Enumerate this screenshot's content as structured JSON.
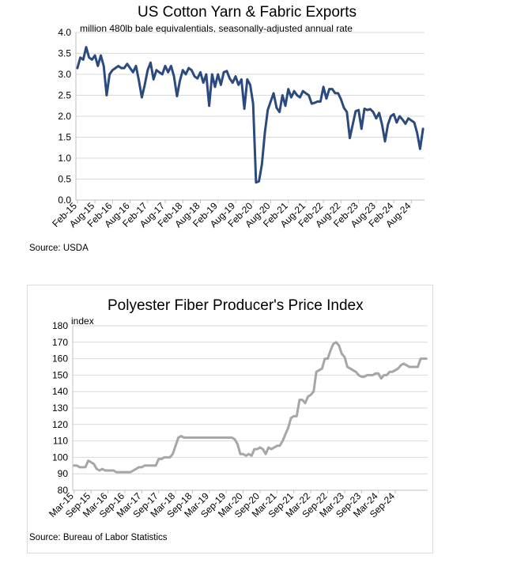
{
  "chart_data": [
    {
      "type": "line",
      "title": "US Cotton Yarn & Fabric Exports",
      "ylabel": "million 480lb bale equivalentials, seasonally-adjusted annual rate",
      "xlabel": "",
      "source": "Source: USDA",
      "ylim": [
        0,
        4.0
      ],
      "y_ticks": [
        "0.0",
        "0.5",
        "1.0",
        "1.5",
        "2.0",
        "2.5",
        "3.0",
        "3.5",
        "4.0"
      ],
      "x_tick_labels": [
        "Feb-15",
        "Aug-15",
        "Feb-16",
        "Aug-16",
        "Feb-17",
        "Aug-17",
        "Feb-18",
        "Aug-18",
        "Feb-19",
        "Aug-19",
        "Feb-20",
        "Aug-20",
        "Feb-21",
        "Aug-21",
        "Feb-22",
        "Aug-22",
        "Feb-23",
        "Aug-23",
        "Feb-24",
        "Aug-24"
      ],
      "color": "#2b4a7e",
      "series": [
        {
          "name": "US Cotton Yarn & Fabric Exports",
          "values": [
            3.15,
            3.4,
            3.35,
            3.65,
            3.4,
            3.35,
            3.45,
            3.2,
            3.45,
            3.2,
            2.5,
            3.0,
            3.1,
            3.15,
            3.2,
            3.15,
            3.15,
            3.25,
            3.15,
            3.05,
            3.2,
            2.85,
            2.45,
            2.75,
            3.1,
            3.28,
            2.88,
            3.1,
            3.05,
            3.0,
            3.2,
            3.05,
            3.2,
            2.95,
            2.48,
            2.85,
            3.1,
            3.0,
            3.15,
            3.1,
            2.95,
            2.9,
            3.05,
            2.8,
            3.0,
            2.25,
            3.0,
            2.7,
            3.0,
            2.75,
            3.05,
            3.08,
            2.9,
            2.8,
            2.95,
            2.75,
            2.88,
            2.18,
            2.88,
            2.75,
            2.3,
            0.42,
            0.45,
            0.85,
            1.6,
            2.15,
            2.35,
            2.55,
            2.2,
            2.1,
            2.5,
            2.25,
            2.65,
            2.45,
            2.6,
            2.5,
            2.45,
            2.6,
            2.55,
            2.5,
            2.3,
            2.32,
            2.35,
            2.35,
            2.7,
            2.42,
            2.65,
            2.65,
            2.55,
            2.55,
            2.4,
            2.2,
            2.1,
            1.48,
            1.8,
            2.12,
            2.15,
            1.7,
            2.18,
            2.15,
            2.17,
            2.1,
            1.95,
            2.08,
            1.8,
            1.4,
            1.8,
            2.0,
            2.05,
            1.85,
            2.0,
            1.92,
            1.82,
            1.95,
            1.9,
            1.85,
            1.6,
            1.22,
            1.7
          ]
        }
      ]
    },
    {
      "type": "line",
      "title": "Polyester Fiber Producer's Price Index",
      "ylabel": "index",
      "xlabel": "",
      "source": "Source: Bureau of Labor Statistics",
      "ylim": [
        80,
        180
      ],
      "y_ticks": [
        "80",
        "90",
        "100",
        "110",
        "120",
        "130",
        "140",
        "150",
        "160",
        "170",
        "180"
      ],
      "x_tick_labels": [
        "Mar-15",
        "Sep-15",
        "Mar-16",
        "Sep-16",
        "Mar-17",
        "Sep-17",
        "Mar-18",
        "Sep-18",
        "Mar-19",
        "Sep-19",
        "Mar-20",
        "Sep-20",
        "Mar-21",
        "Sep-21",
        "Mar-22",
        "Sep-22",
        "Mar-23",
        "Sep-23",
        "Mar-24",
        "Sep-24"
      ],
      "color": "#a6a6a6",
      "series": [
        {
          "name": "Polyester Fiber Producer's Price Index",
          "values": [
            95,
            95,
            94,
            94,
            94,
            98,
            97,
            96,
            93,
            92,
            93,
            92,
            92,
            92,
            92,
            91,
            91,
            91,
            91,
            91,
            91,
            92,
            93,
            94,
            94,
            95,
            95,
            95,
            95,
            95,
            99,
            99,
            100,
            100,
            100,
            102,
            107,
            112,
            113,
            112,
            112,
            112,
            112,
            112,
            112,
            112,
            112,
            112,
            112,
            112,
            112,
            112,
            112,
            112,
            112,
            112,
            112,
            111,
            108,
            102,
            102,
            101,
            102,
            101,
            105,
            105,
            106,
            105,
            102,
            106,
            105,
            106,
            107,
            107,
            110,
            114,
            118,
            124,
            125,
            125,
            135,
            135,
            133,
            137,
            138,
            140,
            152,
            153,
            154,
            160,
            160,
            165,
            169,
            170,
            168,
            163,
            161,
            155,
            154,
            153,
            152,
            150,
            149,
            149,
            150,
            150,
            150,
            151,
            151,
            148,
            150,
            150,
            152,
            152,
            153,
            154,
            156,
            157,
            156,
            155,
            155,
            155,
            155,
            160,
            160,
            160
          ]
        }
      ]
    }
  ]
}
